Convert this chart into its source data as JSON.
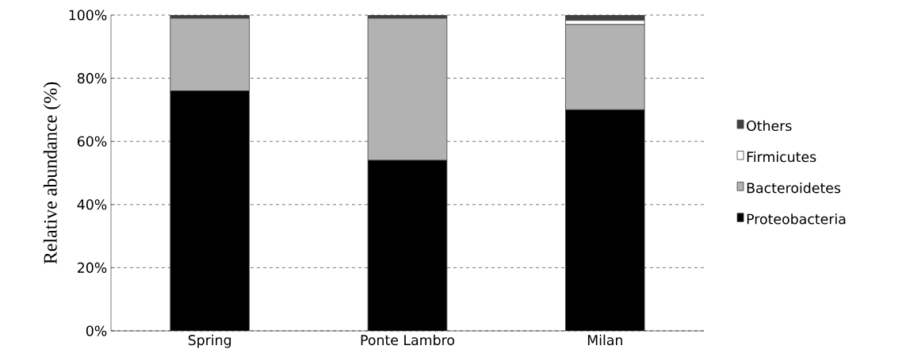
{
  "chart_data": {
    "type": "bar",
    "stacked": true,
    "ylabel": "Relative abundance (%)",
    "categories": [
      "Spring",
      "Ponte Lambro",
      "Milan"
    ],
    "series": [
      {
        "name": "Proteobacteria",
        "color": "#000000",
        "values": [
          76,
          54,
          70
        ]
      },
      {
        "name": "Bacteroidetes",
        "color": "#b2b2b2",
        "values": [
          23,
          45,
          27
        ]
      },
      {
        "name": "Firmicutes",
        "color": "#ffffff",
        "values": [
          0,
          0,
          1.3
        ]
      },
      {
        "name": "Others",
        "color": "#404040",
        "values": [
          1,
          1,
          1.7
        ]
      }
    ],
    "ylim": [
      0,
      100
    ],
    "yticks": [
      {
        "value": 0,
        "label": "0%"
      },
      {
        "value": 20,
        "label": "20%"
      },
      {
        "value": 40,
        "label": "40%"
      },
      {
        "value": 60,
        "label": "60%"
      },
      {
        "value": 80,
        "label": "80%"
      },
      {
        "value": 100,
        "label": "100%"
      }
    ],
    "grid": "y",
    "legend": "right"
  }
}
